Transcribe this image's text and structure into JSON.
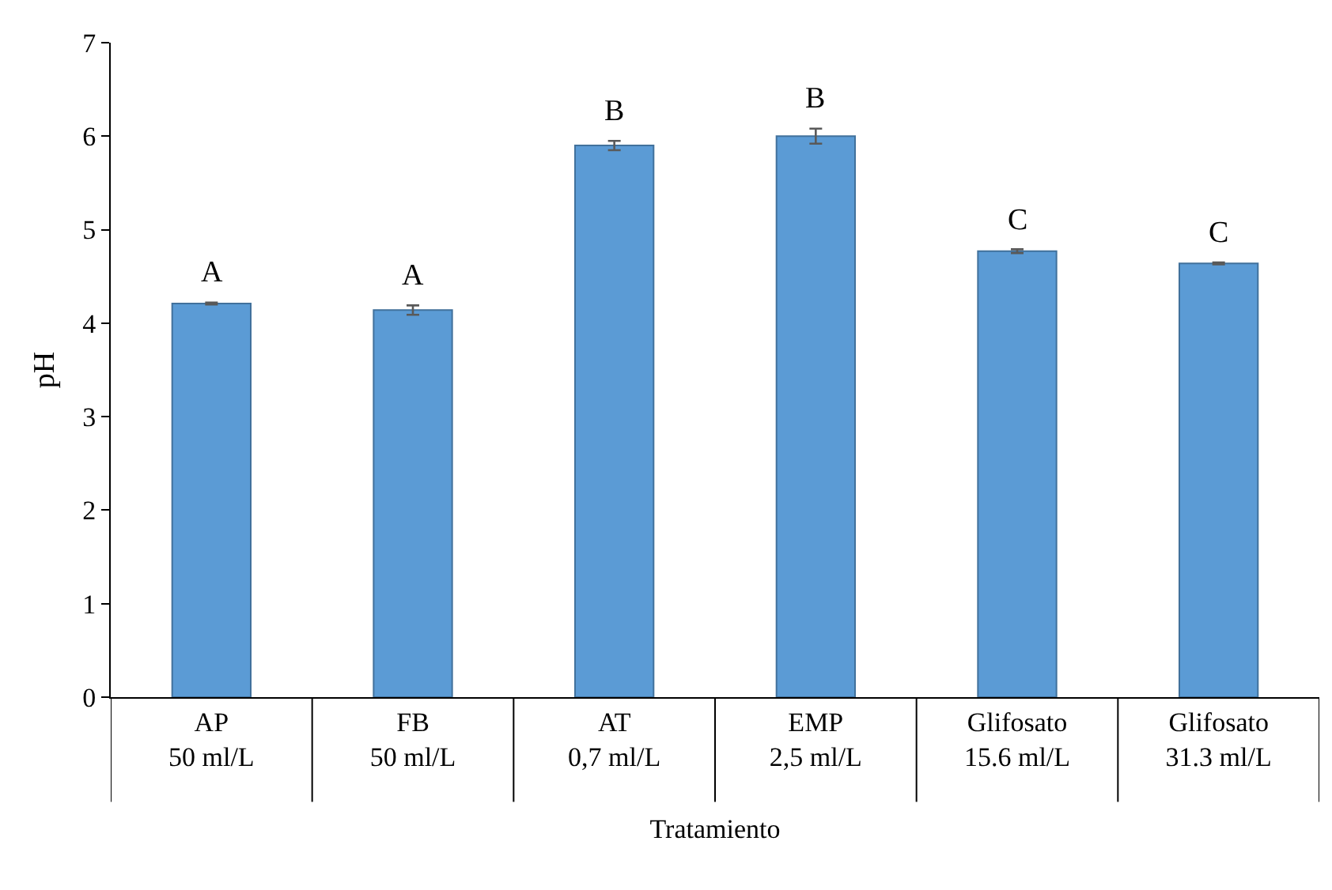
{
  "chart_data": {
    "type": "bar",
    "xlabel": "Tratamiento",
    "ylabel": "pH",
    "categories": [
      "AP\n50 ml/L",
      "FB\n50 ml/L",
      "AT\n0,7 ml/L",
      "EMP\n2,5 ml/L",
      "Glifosato\n15.6 ml/L",
      "Glifosato\n31.3 ml/L"
    ],
    "values": [
      4.21,
      4.14,
      5.9,
      6.0,
      4.77,
      4.64
    ],
    "errors": [
      0.01,
      0.05,
      0.05,
      0.08,
      0.02,
      0.01
    ],
    "color": "#5b9bd5",
    "ylim": [
      0,
      7
    ],
    "yticks": [
      0,
      1,
      2,
      3,
      4,
      5,
      6,
      7
    ],
    "grid": false,
    "annotations": [
      {
        "text": "A",
        "x": "AP\n50 ml/L",
        "y": 4.21
      },
      {
        "text": "A",
        "x": "FB\n50 ml/L",
        "y": 4.14
      },
      {
        "text": "B",
        "x": "AT\n0,7 ml/L",
        "y": 5.9
      },
      {
        "text": "B",
        "x": "EMP\n2,5 ml/L",
        "y": 6.0
      },
      {
        "text": "C",
        "x": "Glifosato\n15.6 ml/L",
        "y": 4.77
      },
      {
        "text": "C",
        "x": "Glifosato\n31.3 ml/L",
        "y": 4.64
      }
    ]
  }
}
